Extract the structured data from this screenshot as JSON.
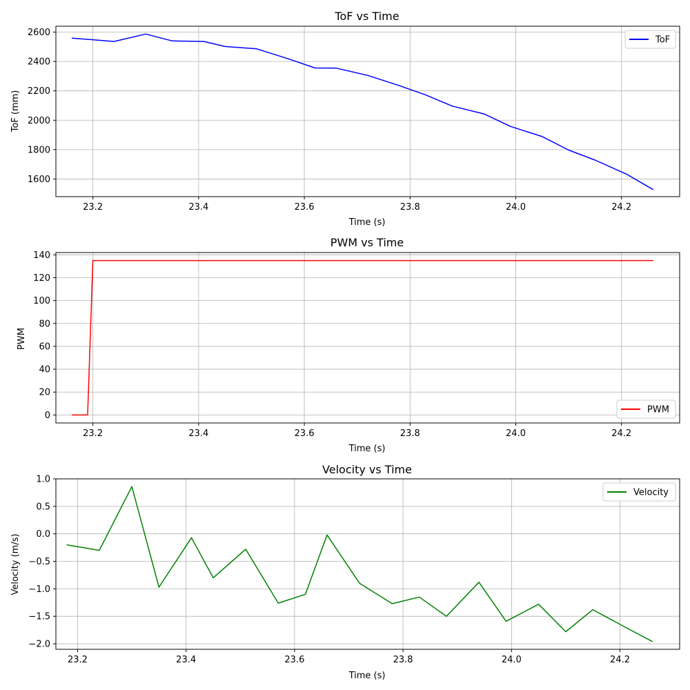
{
  "chart_data": [
    {
      "type": "line",
      "title": "ToF vs Time",
      "xlabel": "Time (s)",
      "ylabel": "ToF (mm)",
      "xlim": [
        23.13,
        24.31
      ],
      "ylim": [
        1480,
        2640
      ],
      "xticks": [
        23.2,
        23.4,
        23.6,
        23.8,
        24.0,
        24.2
      ],
      "yticks": [
        1600,
        1800,
        2000,
        2200,
        2400,
        2600
      ],
      "xtick_labels": [
        "23.2",
        "23.4",
        "23.6",
        "23.8",
        "24.0",
        "24.2"
      ],
      "ytick_labels": [
        "1600",
        "1800",
        "2000",
        "2200",
        "2400",
        "2600"
      ],
      "grid": true,
      "legend_position": "top-right",
      "series": [
        {
          "name": "ToF",
          "color": "#0000ff",
          "x": [
            23.16,
            23.24,
            23.3,
            23.35,
            23.41,
            23.45,
            23.51,
            23.57,
            23.62,
            23.66,
            23.72,
            23.78,
            23.83,
            23.88,
            23.94,
            23.99,
            24.05,
            24.1,
            24.15,
            24.21,
            24.26
          ],
          "y": [
            2559,
            2536,
            2587,
            2540,
            2536,
            2502,
            2486,
            2418,
            2356,
            2355,
            2305,
            2235,
            2172,
            2096,
            2043,
            1958,
            1889,
            1797,
            1729,
            1632,
            1528
          ]
        }
      ]
    },
    {
      "type": "line",
      "title": "PWM vs Time",
      "xlabel": "Time (s)",
      "ylabel": "PWM",
      "xlim": [
        23.13,
        24.31
      ],
      "ylim": [
        -7,
        142
      ],
      "xticks": [
        23.2,
        23.4,
        23.6,
        23.8,
        24.0,
        24.2
      ],
      "yticks": [
        0,
        20,
        40,
        60,
        80,
        100,
        120,
        140
      ],
      "xtick_labels": [
        "23.2",
        "23.4",
        "23.6",
        "23.8",
        "24.0",
        "24.2"
      ],
      "ytick_labels": [
        "0",
        "20",
        "40",
        "60",
        "80",
        "100",
        "120",
        "140"
      ],
      "grid": true,
      "legend_position": "bottom-right",
      "series": [
        {
          "name": "PWM",
          "color": "#ff0000",
          "x": [
            23.16,
            23.19,
            23.2,
            24.26
          ],
          "y": [
            0,
            0,
            135,
            135
          ]
        }
      ]
    },
    {
      "type": "line",
      "title": "Velocity vs Time",
      "xlabel": "Time (s)",
      "ylabel": "Velocity (m/s)",
      "xlim": [
        23.16,
        24.31
      ],
      "ylim": [
        -2.1,
        1.0
      ],
      "xticks": [
        23.2,
        23.4,
        23.6,
        23.8,
        24.0,
        24.2
      ],
      "yticks": [
        -2.0,
        -1.5,
        -1.0,
        -0.5,
        0.0,
        0.5,
        1.0
      ],
      "xtick_labels": [
        "23.2",
        "23.4",
        "23.6",
        "23.8",
        "24.0",
        "24.2"
      ],
      "ytick_labels": [
        "−2.0",
        "−1.5",
        "−1.0",
        "−0.5",
        "0.0",
        "0.5",
        "1.0"
      ],
      "grid": true,
      "legend_position": "top-right",
      "series": [
        {
          "name": "Velocity",
          "color": "#008000",
          "x": [
            23.18,
            23.24,
            23.3,
            23.35,
            23.41,
            23.45,
            23.51,
            23.57,
            23.62,
            23.66,
            23.72,
            23.78,
            23.83,
            23.88,
            23.94,
            23.99,
            24.05,
            24.1,
            24.15,
            24.21,
            24.26
          ],
          "y": [
            -0.2,
            -0.3,
            0.86,
            -0.97,
            -0.07,
            -0.8,
            -0.28,
            -1.26,
            -1.1,
            -0.02,
            -0.9,
            -1.27,
            -1.15,
            -1.5,
            -0.88,
            -1.59,
            -1.28,
            -1.78,
            -1.38,
            -1.7,
            -1.96
          ]
        }
      ]
    }
  ]
}
